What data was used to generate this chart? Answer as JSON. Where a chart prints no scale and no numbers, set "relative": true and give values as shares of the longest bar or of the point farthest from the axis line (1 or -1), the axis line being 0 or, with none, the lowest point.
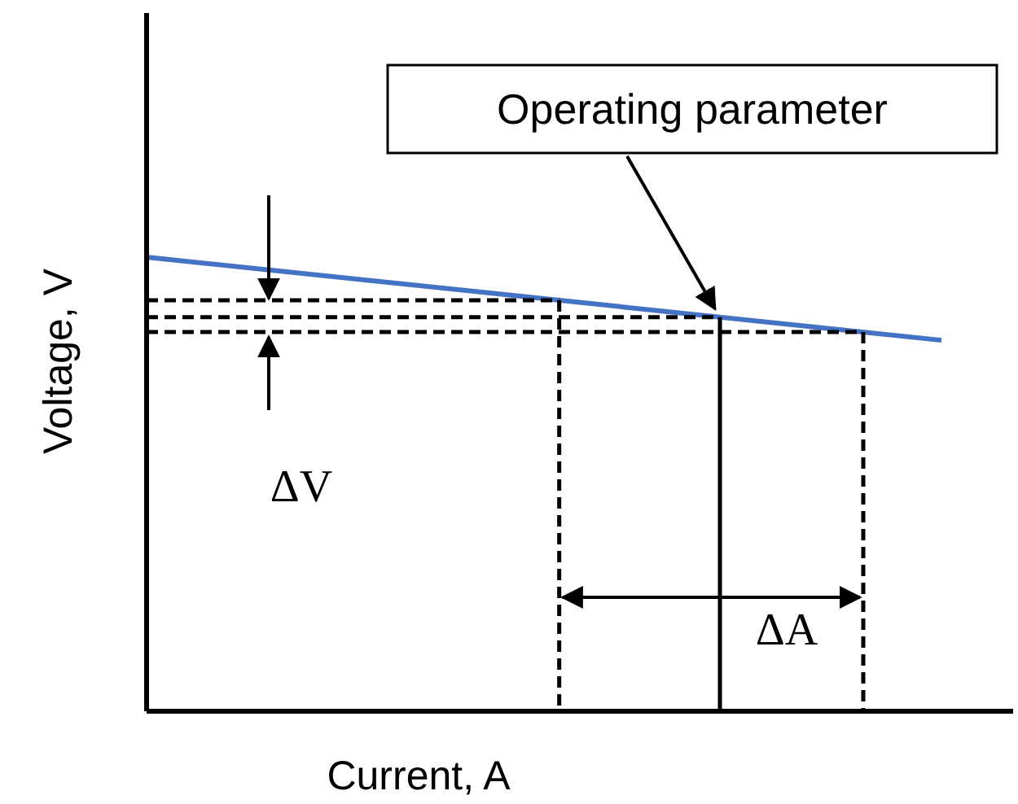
{
  "chart_data": {
    "type": "line",
    "xlabel": "Current, A",
    "ylabel": "Voltage, V",
    "relative": true,
    "marker": "none",
    "line_style": "solid",
    "categories": [
      null,
      null
    ],
    "series": [
      {
        "color": "#4472c4",
        "values": [
          1,
          0.817
        ]
      }
    ],
    "ref_lines": [
      {
        "axis": "y",
        "value": 0.905,
        "color": "#000000",
        "line_style": "dashed"
      },
      {
        "axis": "y",
        "value": 0.868,
        "color": "#000000",
        "line_style": "dashed"
      },
      {
        "axis": "y",
        "value": 0.835,
        "color": "#000000",
        "line_style": "dashed"
      }
    ],
    "annotations": [
      "Operating parameter",
      "ΔV",
      "ΔA"
    ]
  }
}
